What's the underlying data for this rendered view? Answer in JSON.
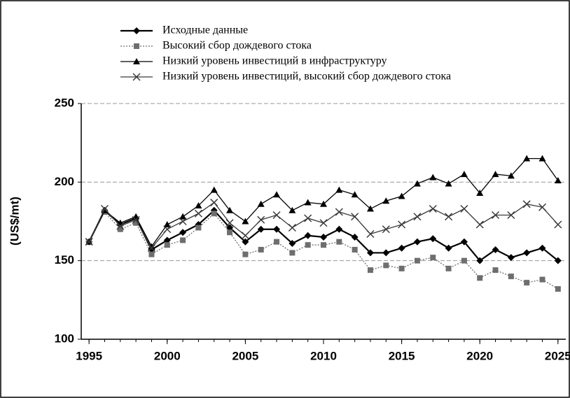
{
  "chart_data": {
    "type": "line",
    "y_label": "(US$/mt)",
    "x": [
      1995,
      1996,
      1997,
      1998,
      1999,
      2000,
      2001,
      2002,
      2003,
      2004,
      2005,
      2006,
      2007,
      2008,
      2009,
      2010,
      2011,
      2012,
      2013,
      2014,
      2015,
      2016,
      2017,
      2018,
      2019,
      2020,
      2021,
      2022,
      2023,
      2024,
      2025
    ],
    "series": [
      {
        "name": "Исходные данные",
        "color": "#000000",
        "marker": "diamond",
        "dash": "solid",
        "values": [
          162,
          182,
          173,
          177,
          157,
          163,
          168,
          173,
          182,
          171,
          162,
          170,
          170,
          161,
          166,
          165,
          170,
          165,
          155,
          155,
          158,
          162,
          164,
          158,
          162,
          150,
          157,
          152,
          155,
          158,
          150
        ]
      },
      {
        "name": "Высокий сбор дождевого стока",
        "color": "#6e6e6e",
        "marker": "square",
        "dash": "dotted",
        "values": [
          162,
          181,
          170,
          174,
          154,
          160,
          163,
          171,
          180,
          168,
          154,
          157,
          162,
          155,
          160,
          160,
          162,
          157,
          144,
          147,
          145,
          150,
          152,
          145,
          150,
          139,
          144,
          140,
          136,
          138,
          132
        ]
      },
      {
        "name": "Низкий уровень инвестиций в инфраструктуру",
        "color": "#000000",
        "marker": "triangle",
        "dash": "solid",
        "values": [
          162,
          182,
          174,
          178,
          159,
          173,
          178,
          185,
          195,
          182,
          175,
          186,
          192,
          182,
          187,
          186,
          195,
          192,
          183,
          188,
          191,
          199,
          203,
          199,
          205,
          193,
          205,
          204,
          215,
          215,
          201
        ]
      },
      {
        "name": "Низкий уровень инвестиций, высокий сбор дождевого стока",
        "color": "#3a3a3a",
        "marker": "x",
        "dash": "solid",
        "values": [
          162,
          183,
          172,
          176,
          158,
          170,
          175,
          180,
          187,
          174,
          166,
          176,
          179,
          171,
          177,
          174,
          181,
          178,
          167,
          170,
          173,
          178,
          183,
          178,
          183,
          173,
          179,
          179,
          186,
          184,
          173
        ]
      }
    ],
    "xlim": [
      1994.5,
      2025.5
    ],
    "xticks": [
      1995,
      2000,
      2005,
      2010,
      2015,
      2020,
      2025
    ],
    "ylim": [
      100,
      250
    ],
    "yticks": [
      100,
      150,
      200,
      250
    ],
    "grid": true
  }
}
